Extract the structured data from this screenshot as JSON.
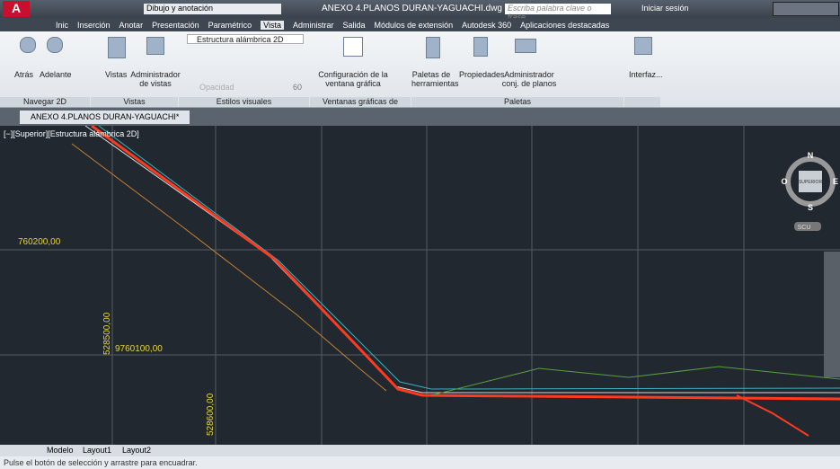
{
  "title_bar": {
    "workspace": "Dibujo y anotación",
    "file": "ANEXO 4.PLANOS DURAN-YAGUACHI.dwg",
    "search": "Escriba palabra clave o frase",
    "sign_in": "Iniciar sesión"
  },
  "tabs": [
    "Inic",
    "Inserción",
    "Anotar",
    "Presentación",
    "Paramétrico",
    "Vista",
    "Administrar",
    "Salida",
    "Módulos de extensión",
    "Autodesk 360",
    "Aplicaciones destacadas"
  ],
  "ribbon": {
    "buttons": {
      "back": "Atrás",
      "forward": "Adelante",
      "views": "Vistas",
      "view_manager": "Administrador de vistas",
      "visual_style": "Estructura alámbrica 2D",
      "opacity": "Opacidad",
      "opacity_value": "60",
      "viewport_config": "Configuración de la ventana gráfica",
      "tool_palettes": "Paletas de herramientas",
      "properties": "Propiedades",
      "sheet_set": "Administrador conj. de planos",
      "interface": "Interfaz..."
    },
    "panels": [
      "Navegar 2D",
      "Vistas",
      "Estilos visuales",
      "Ventanas gráficas de modelo",
      "Paletas"
    ]
  },
  "document_tab": "ANEXO 4.PLANOS DURAN-YAGUACHI*",
  "viewport": {
    "label": "[−][Superior][Estructura alámbrica 2D]",
    "viewcube": {
      "north": "N",
      "south": "S",
      "east": "E",
      "west": "O",
      "face": "SUPERIOR",
      "ucs": "SCU"
    },
    "coordinates": [
      "760200,00",
      "9760100,00",
      "528500,00",
      "528600,00"
    ]
  },
  "layout_tabs": [
    "Modelo",
    "Layout1",
    "Layout2"
  ],
  "command_line": "Pulse el botón de selección y arrastre para encuadrar."
}
